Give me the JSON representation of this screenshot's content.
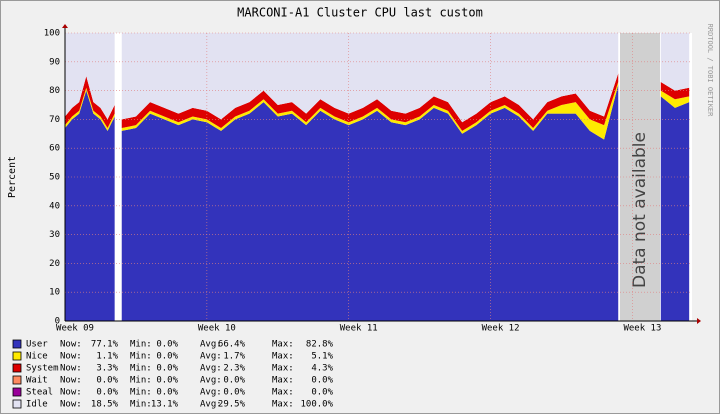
{
  "chart_data": {
    "type": "stacked-area",
    "title": "MARCONI-A1 Cluster CPU last custom",
    "y_label": "Percent",
    "watermark": "RRDTOOL / TOBI OETIKER",
    "annotation": "Data not available",
    "xlim": [
      9,
      13.42
    ],
    "xticks": [
      {
        "value": 9,
        "label": "Week 09"
      },
      {
        "value": 10,
        "label": "Week 10"
      },
      {
        "value": 11,
        "label": "Week 11"
      },
      {
        "value": 12,
        "label": "Week 12"
      },
      {
        "value": 13,
        "label": "Week 13"
      }
    ],
    "ylim": [
      0,
      100
    ],
    "yticks": [
      0,
      10,
      20,
      30,
      40,
      50,
      60,
      70,
      80,
      90,
      100
    ],
    "grid": true,
    "stat_labels": [
      "Now:",
      "Min:",
      "Avg:",
      "Max:"
    ],
    "x": [
      9.0,
      9.05,
      9.1,
      9.15,
      9.2,
      9.25,
      9.3,
      9.35,
      9.37,
      9.4,
      9.5,
      9.6,
      9.7,
      9.8,
      9.9,
      10.0,
      10.1,
      10.2,
      10.3,
      10.4,
      10.5,
      10.6,
      10.7,
      10.8,
      10.9,
      11.0,
      11.1,
      11.2,
      11.3,
      11.4,
      11.5,
      11.6,
      11.7,
      11.8,
      11.9,
      12.0,
      12.1,
      12.2,
      12.3,
      12.4,
      12.5,
      12.6,
      12.7,
      12.8,
      12.9,
      13.0,
      13.1,
      13.2,
      13.3,
      13.4
    ],
    "series": [
      {
        "name": "User",
        "color": "#3333bb",
        "stats": [
          "77.1%",
          "0.0%",
          "66.4%",
          "82.8%"
        ],
        "values": [
          67,
          70,
          72,
          80,
          72,
          70,
          66,
          71,
          null,
          66,
          67,
          72,
          70,
          68,
          70,
          69,
          66,
          70,
          72,
          76,
          71,
          72,
          68,
          73,
          70,
          68,
          70,
          73,
          69,
          68,
          70,
          74,
          72,
          65,
          68,
          72,
          74,
          71,
          66,
          72,
          72,
          72,
          66,
          63,
          82,
          null,
          null,
          78,
          74,
          76
        ]
      },
      {
        "name": "Nice",
        "color": "#ffea00",
        "stats": [
          "1.1%",
          "0.0%",
          "1.7%",
          "5.1%"
        ],
        "values": [
          1,
          1,
          1,
          1,
          1,
          1,
          1,
          1,
          null,
          1,
          1,
          1,
          1,
          1,
          1,
          1,
          1,
          1,
          1,
          1,
          1,
          1,
          1,
          1,
          1,
          1,
          1,
          1,
          1,
          1,
          1,
          1,
          1,
          1,
          1,
          1,
          1,
          1,
          1,
          1,
          3,
          4,
          4,
          5,
          1,
          null,
          null,
          2,
          3,
          2
        ]
      },
      {
        "name": "System",
        "color": "#dd0000",
        "stats": [
          "3.3%",
          "0.0%",
          "2.3%",
          "4.3%"
        ],
        "values": [
          3,
          3,
          3,
          4,
          3,
          3,
          3,
          3,
          null,
          3,
          3,
          3,
          3,
          3,
          3,
          3,
          3,
          3,
          3,
          3,
          3,
          3,
          3,
          3,
          3,
          3,
          3,
          3,
          3,
          3,
          3,
          3,
          3,
          3,
          3,
          3,
          3,
          3,
          3,
          3,
          3,
          3,
          3,
          3,
          3,
          null,
          null,
          3,
          3,
          3
        ]
      },
      {
        "name": "Wait",
        "color": "#ff8a60",
        "stats": [
          "0.0%",
          "0.0%",
          "0.0%",
          "0.0%"
        ],
        "values": [
          0,
          0,
          0,
          0,
          0,
          0,
          0,
          0,
          null,
          0,
          0,
          0,
          0,
          0,
          0,
          0,
          0,
          0,
          0,
          0,
          0,
          0,
          0,
          0,
          0,
          0,
          0,
          0,
          0,
          0,
          0,
          0,
          0,
          0,
          0,
          0,
          0,
          0,
          0,
          0,
          0,
          0,
          0,
          0,
          0,
          null,
          null,
          0,
          0,
          0
        ]
      },
      {
        "name": "Steal",
        "color": "#990099",
        "stats": [
          "0.0%",
          "0.0%",
          "0.0%",
          "0.0%"
        ],
        "values": [
          0,
          0,
          0,
          0,
          0,
          0,
          0,
          0,
          null,
          0,
          0,
          0,
          0,
          0,
          0,
          0,
          0,
          0,
          0,
          0,
          0,
          0,
          0,
          0,
          0,
          0,
          0,
          0,
          0,
          0,
          0,
          0,
          0,
          0,
          0,
          0,
          0,
          0,
          0,
          0,
          0,
          0,
          0,
          0,
          0,
          null,
          null,
          0,
          0,
          0
        ]
      },
      {
        "name": "Idle",
        "color": "#e2e2f2",
        "stats": [
          "18.5%",
          "13.1%",
          "29.5%",
          "100.0%"
        ],
        "values": [
          29,
          26,
          24,
          15,
          24,
          26,
          30,
          25,
          null,
          30,
          29,
          24,
          26,
          28,
          26,
          27,
          30,
          26,
          24,
          20,
          25,
          24,
          28,
          23,
          26,
          28,
          26,
          23,
          27,
          28,
          26,
          22,
          24,
          31,
          28,
          24,
          22,
          25,
          30,
          24,
          22,
          21,
          27,
          29,
          14,
          null,
          null,
          17,
          20,
          19
        ]
      }
    ]
  }
}
